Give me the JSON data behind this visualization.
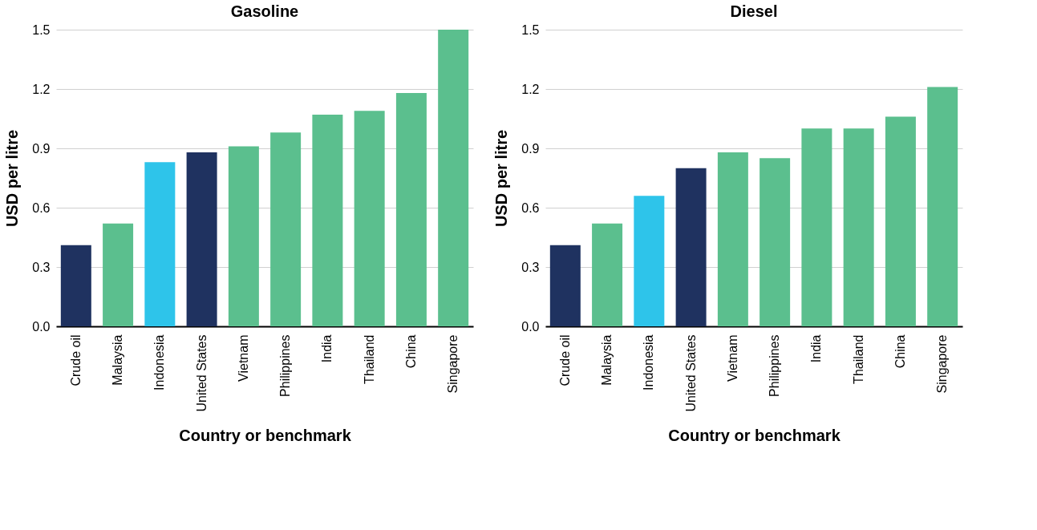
{
  "chart_data": [
    {
      "type": "bar",
      "title": "Gasoline",
      "xlabel": "Country or benchmark",
      "ylabel": "USD per litre",
      "categories": [
        "Crude oil",
        "Malaysia",
        "Indonesia",
        "United States",
        "Vietnam",
        "Philippines",
        "India",
        "Thailand",
        "China",
        "Singapore"
      ],
      "values": [
        0.41,
        0.52,
        0.83,
        0.88,
        0.91,
        0.98,
        1.07,
        1.09,
        1.18,
        1.5
      ],
      "colors": [
        "#1f3260",
        "#5bbf8e",
        "#2ec4ea",
        "#1f3260",
        "#5bbf8e",
        "#5bbf8e",
        "#5bbf8e",
        "#5bbf8e",
        "#5bbf8e",
        "#5bbf8e"
      ],
      "ylim": [
        0,
        1.5
      ],
      "yticks": [
        {
          "value": 0,
          "label": "0.0"
        },
        0.3,
        0.6,
        0.9,
        1.2,
        1.5
      ],
      "grid": "y"
    },
    {
      "type": "bar",
      "title": "Diesel",
      "xlabel": "Country or benchmark",
      "ylabel": "USD per litre",
      "categories": [
        "Crude oil",
        "Malaysia",
        "Indonesia",
        "United States",
        "Vietnam",
        "Philippines",
        "India",
        "Thailand",
        "China",
        "Singapore"
      ],
      "values": [
        0.41,
        0.52,
        0.66,
        0.8,
        0.88,
        0.85,
        1.0,
        1.0,
        1.06,
        1.21
      ],
      "colors": [
        "#1f3260",
        "#5bbf8e",
        "#2ec4ea",
        "#1f3260",
        "#5bbf8e",
        "#5bbf8e",
        "#5bbf8e",
        "#5bbf8e",
        "#5bbf8e",
        "#5bbf8e"
      ],
      "ylim": [
        0,
        1.5
      ],
      "yticks": [
        {
          "value": 0,
          "label": "0.0"
        },
        0.3,
        0.6,
        0.9,
        1.2,
        1.5
      ],
      "grid": "y"
    }
  ]
}
